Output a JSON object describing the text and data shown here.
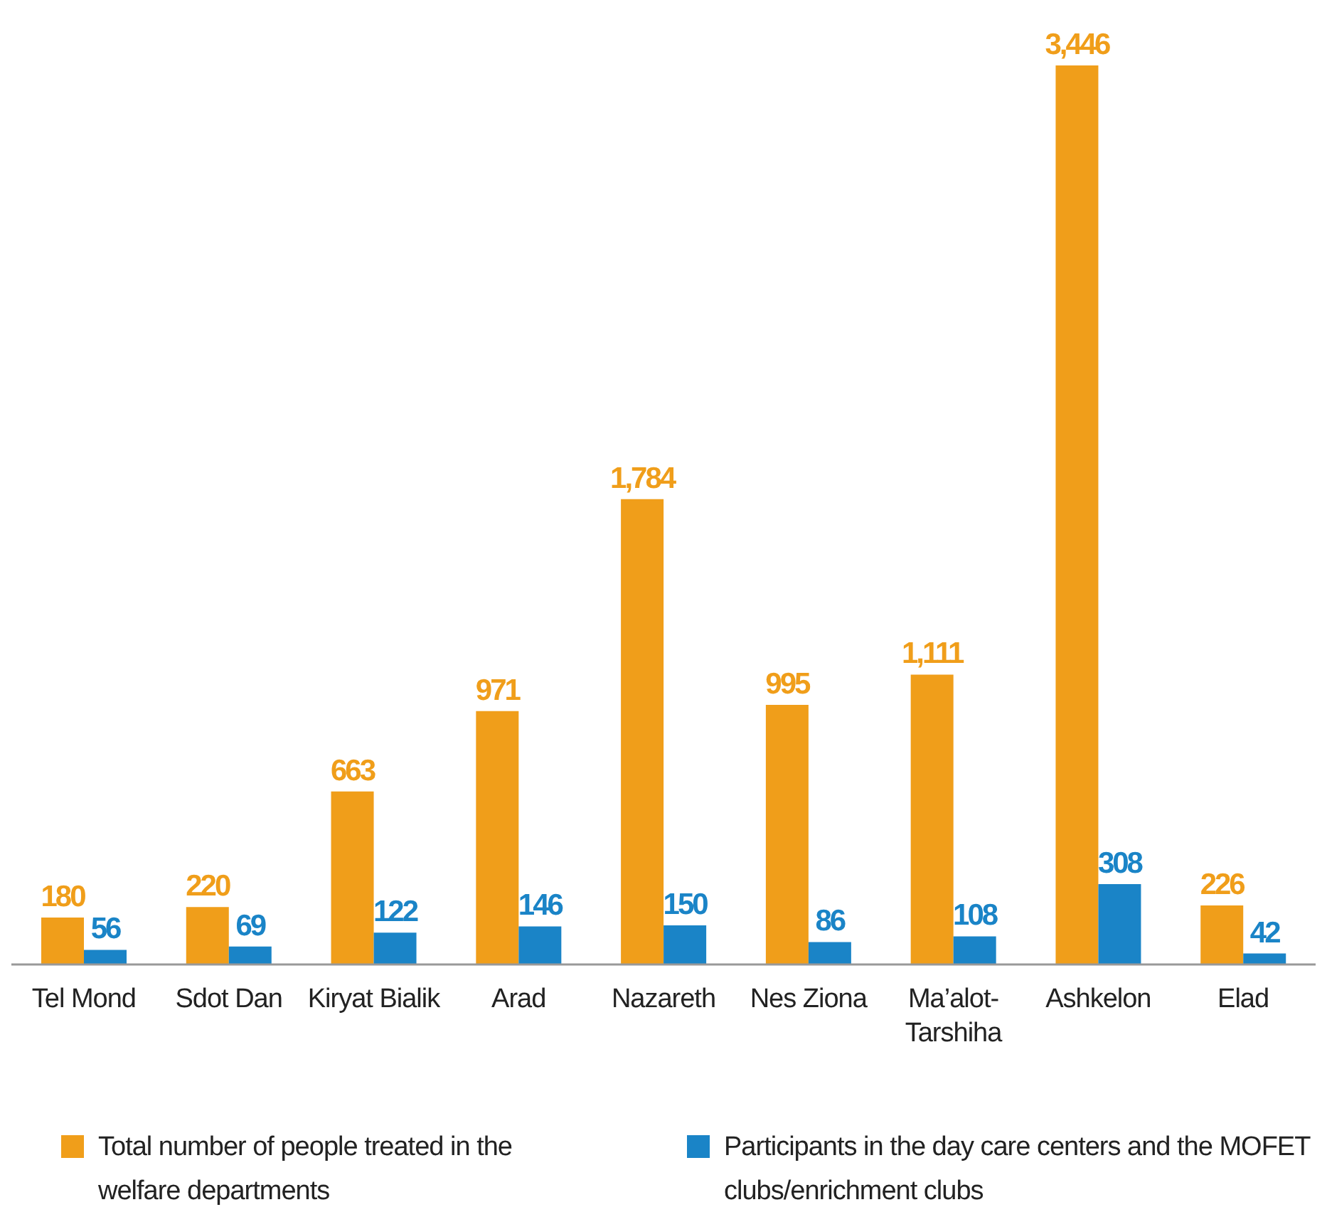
{
  "chart_data": {
    "type": "bar",
    "categories": [
      "Tel Mond",
      "Sdot Dan",
      "Kiryat Bialik",
      "Arad",
      "Nazareth",
      "Nes Ziona",
      "Ma’alot-Tarshiha",
      "Ashkelon",
      "Elad"
    ],
    "series": [
      {
        "name": "Total number of people treated in the welfare departments",
        "color": "#f09e1a",
        "values": [
          180,
          220,
          663,
          971,
          1784,
          995,
          1111,
          3446,
          226
        ],
        "value_labels": [
          "180",
          "220",
          "663",
          "971",
          "1,784",
          "995",
          "1,111",
          "3,446",
          "226"
        ]
      },
      {
        "name": "Participants in the day care centers and the MOFET clubs/enrichment clubs",
        "color": "#1a84c7",
        "values": [
          56,
          69,
          122,
          146,
          150,
          86,
          108,
          308,
          42
        ],
        "value_labels": [
          "56",
          "69",
          "122",
          "146",
          "150",
          "86",
          "108",
          "308",
          "42"
        ]
      }
    ],
    "grid": false,
    "legend": "bottom"
  }
}
